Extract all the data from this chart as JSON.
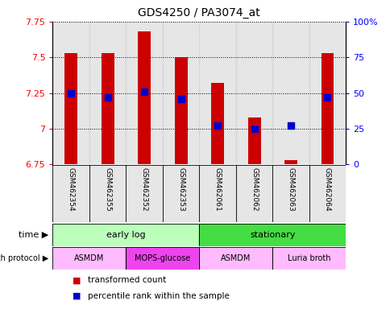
{
  "title": "GDS4250 / PA3074_at",
  "samples": [
    "GSM462354",
    "GSM462355",
    "GSM462352",
    "GSM462353",
    "GSM462061",
    "GSM462062",
    "GSM462063",
    "GSM462064"
  ],
  "red_values": [
    7.53,
    7.53,
    7.68,
    7.5,
    7.32,
    7.08,
    6.78,
    7.53
  ],
  "blue_values_pct": [
    50,
    47,
    51,
    46,
    27,
    25,
    27,
    47
  ],
  "ylim_left": [
    6.75,
    7.75
  ],
  "ylim_right": [
    0,
    100
  ],
  "yticks_left": [
    6.75,
    7.0,
    7.25,
    7.5,
    7.75
  ],
  "yticks_right": [
    0,
    25,
    50,
    75,
    100
  ],
  "ytick_labels_left": [
    "6.75",
    "7",
    "7.25",
    "7.5",
    "7.75"
  ],
  "ytick_labels_right": [
    "0",
    "25",
    "50",
    "75",
    "100%"
  ],
  "bar_color": "#cc0000",
  "dot_color": "#0000cc",
  "bar_bottom": 6.75,
  "time_groups": [
    {
      "label": "early log",
      "start": 0,
      "end": 4,
      "color": "#bbffbb"
    },
    {
      "label": "stationary",
      "start": 4,
      "end": 8,
      "color": "#44dd44"
    }
  ],
  "protocol_groups": [
    {
      "label": "ASMDM",
      "start": 0,
      "end": 2,
      "color": "#ffbbff"
    },
    {
      "label": "MOPS-glucose",
      "start": 2,
      "end": 4,
      "color": "#ee44ee"
    },
    {
      "label": "ASMDM",
      "start": 4,
      "end": 6,
      "color": "#ffbbff"
    },
    {
      "label": "Luria broth",
      "start": 6,
      "end": 8,
      "color": "#ffbbff"
    }
  ],
  "time_label": "time",
  "protocol_label": "growth protocol",
  "legend_red": "transformed count",
  "legend_blue": "percentile rank within the sample",
  "bar_width": 0.35,
  "sample_col_color": "#d3d3d3",
  "dot_size": 35,
  "bg_color": "#ffffff"
}
